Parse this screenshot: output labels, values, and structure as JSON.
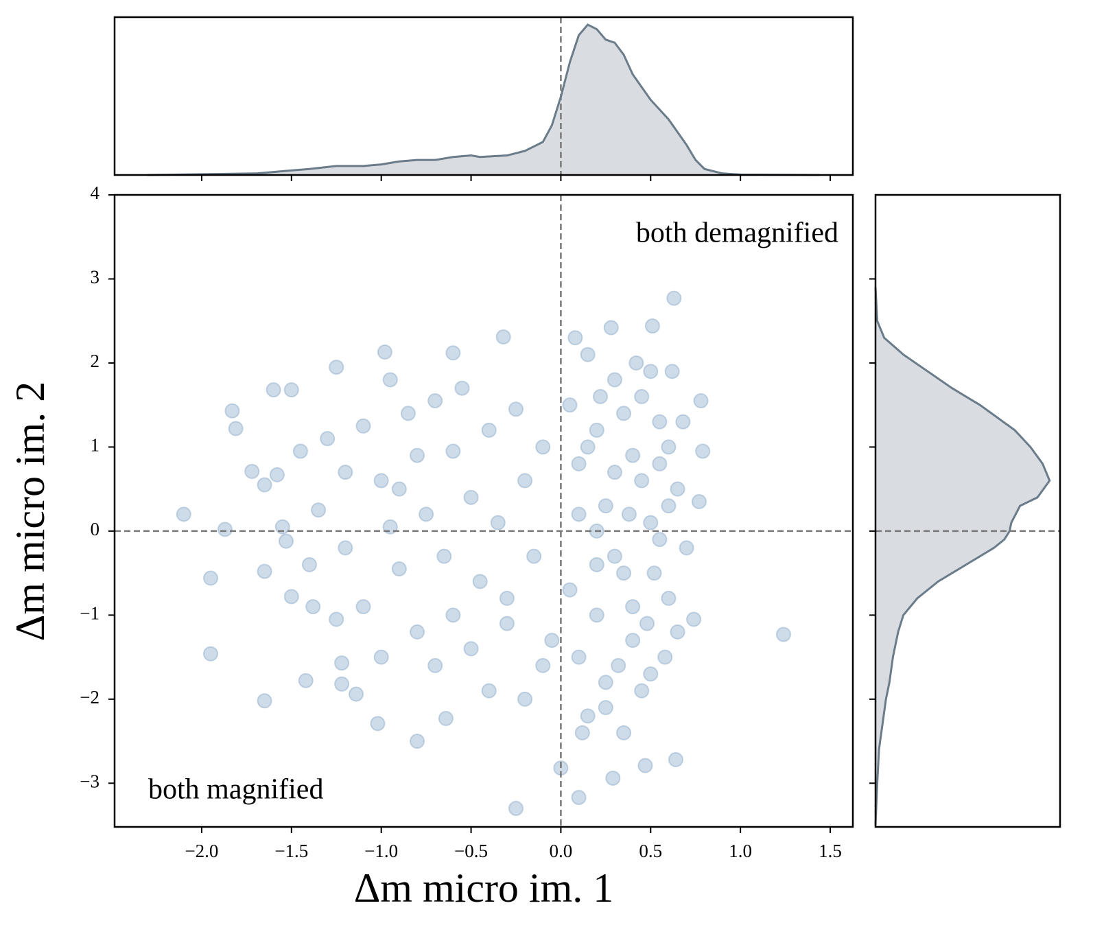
{
  "chart_data": [
    {
      "type": "scatter",
      "x_label": "Δm micro im. 1",
      "y_label": "Δm micro im. 2",
      "annotations": [
        "both demagnified",
        "both magnified"
      ],
      "xlim": [
        -2.485,
        1.626
      ],
      "ylim": [
        -3.52,
        4
      ],
      "xticks": [
        {
          "value": -2.0,
          "label": "−2.0"
        },
        {
          "value": -1.5,
          "label": "−1.5"
        },
        {
          "value": -1.0,
          "label": "−1.0"
        },
        {
          "value": -0.5,
          "label": "−0.5"
        },
        {
          "value": 0.0,
          "label": "0.0"
        },
        {
          "value": 0.5,
          "label": "0.5"
        },
        {
          "value": 1.0,
          "label": "1.0"
        },
        {
          "value": 1.5,
          "label": "1.5"
        }
      ],
      "yticks": [
        {
          "value": -3,
          "label": "−3"
        },
        {
          "value": -2,
          "label": "−2"
        },
        {
          "value": -1,
          "label": "−1"
        },
        0,
        1,
        2,
        3,
        4
      ],
      "vline": 0,
      "hline": 0,
      "series": [
        {
          "color": "#9db8d2",
          "x": [
            -2.1,
            -1.87,
            -1.95,
            -1.95,
            -1.65,
            -1.83,
            -1.81,
            -1.72,
            -1.6,
            -1.5,
            -1.65,
            -1.65,
            -1.58,
            -1.55,
            -1.53,
            -1.5,
            -1.42,
            -1.38,
            1.24,
            0.63,
            0.51,
            0.28,
            -0.32,
            -0.25,
            0.1,
            0.29,
            0.0,
            0.47,
            0.64,
            -0.8,
            -1.02,
            -0.64,
            0.79,
            0.77,
            0.78,
            0.74,
            -1.14,
            -1.22,
            -1.22,
            -1.25,
            -0.98,
            -0.6,
            -1.3,
            -1.2,
            -1.1,
            -1.0,
            -0.95,
            -0.9,
            -0.85,
            -0.8,
            -0.75,
            -0.7,
            -0.65,
            -0.6,
            -0.55,
            -0.5,
            -0.45,
            -0.4,
            -0.35,
            -0.3,
            -0.25,
            -0.2,
            -0.15,
            -0.1,
            -0.05,
            -1.2,
            -1.1,
            -1.0,
            -0.9,
            -0.8,
            -0.7,
            -0.6,
            -0.5,
            -0.4,
            -0.3,
            -0.2,
            -0.1,
            -1.35,
            -1.4,
            -1.45,
            -1.25,
            -0.95,
            0.05,
            0.1,
            0.15,
            0.2,
            0.25,
            0.3,
            0.35,
            0.4,
            0.45,
            0.5,
            0.55,
            0.6,
            0.65,
            0.7,
            0.05,
            0.1,
            0.15,
            0.2,
            0.25,
            0.3,
            0.35,
            0.4,
            0.45,
            0.5,
            0.55,
            0.6,
            0.65,
            0.1,
            0.2,
            0.3,
            0.4,
            0.5,
            0.15,
            0.25,
            0.35,
            0.45,
            0.55,
            0.62,
            0.08,
            0.2,
            0.32,
            0.42,
            0.52,
            0.6,
            0.68,
            0.12,
            0.22,
            0.38,
            0.48,
            0.58
          ],
          "values": [
            0.2,
            0.02,
            -0.56,
            -1.46,
            -2.02,
            1.43,
            1.22,
            0.71,
            1.68,
            1.68,
            0.55,
            -0.48,
            0.67,
            0.05,
            -0.12,
            -0.78,
            -1.78,
            -0.9,
            -1.23,
            2.77,
            2.44,
            2.42,
            2.31,
            -3.3,
            -3.17,
            -2.94,
            -2.82,
            -2.79,
            -2.72,
            -2.5,
            -2.29,
            -2.23,
            0.95,
            0.35,
            1.55,
            -1.05,
            -1.94,
            -1.82,
            -1.57,
            1.95,
            2.13,
            2.12,
            1.1,
            0.7,
            1.25,
            0.6,
            1.8,
            0.5,
            1.4,
            0.9,
            0.2,
            1.55,
            -0.3,
            0.95,
            1.7,
            0.4,
            -0.6,
            1.2,
            0.1,
            -0.8,
            1.45,
            0.6,
            -0.3,
            1.0,
            -1.3,
            -0.2,
            -0.9,
            -1.5,
            -0.45,
            -1.2,
            -1.6,
            -1.0,
            -1.4,
            -1.9,
            -1.1,
            -2.0,
            -1.6,
            0.25,
            -0.4,
            0.95,
            -1.05,
            0.05,
            1.5,
            0.8,
            2.1,
            1.2,
            0.3,
            1.8,
            -0.5,
            0.9,
            1.6,
            0.1,
            1.3,
            -0.8,
            0.5,
            -0.2,
            -0.7,
            -1.5,
            -2.2,
            -1.0,
            -1.8,
            -0.3,
            -2.4,
            -1.3,
            0.6,
            -1.7,
            -0.1,
            1.0,
            -1.2,
            0.2,
            -0.4,
            0.7,
            -0.9,
            1.9,
            1.0,
            -2.1,
            1.4,
            -1.9,
            0.8,
            1.9,
            2.3,
            0.0,
            -1.6,
            2.0,
            -0.5,
            0.3,
            1.3,
            -2.4,
            1.6,
            0.2,
            -1.1,
            -1.5
          ]
        }
      ]
    },
    {
      "type": "kde",
      "orientation": "vertical",
      "color": "#6a7b8a",
      "fill": "#d9dde2",
      "xlim": [
        -2.485,
        1.626
      ],
      "ylim": [
        0,
        1.05
      ],
      "x": [
        -2.3,
        -2.0,
        -1.7,
        -1.5,
        -1.4,
        -1.25,
        -1.1,
        -1.0,
        -0.9,
        -0.8,
        -0.7,
        -0.6,
        -0.5,
        -0.45,
        -0.3,
        -0.2,
        -0.1,
        -0.05,
        0.0,
        0.05,
        0.1,
        0.15,
        0.2,
        0.25,
        0.3,
        0.35,
        0.4,
        0.5,
        0.6,
        0.7,
        0.75,
        0.8,
        0.9,
        1.0,
        1.44
      ],
      "values": [
        0,
        0.005,
        0.01,
        0.03,
        0.04,
        0.06,
        0.06,
        0.07,
        0.09,
        0.1,
        0.1,
        0.12,
        0.13,
        0.12,
        0.13,
        0.16,
        0.22,
        0.33,
        0.52,
        0.75,
        0.93,
        1.0,
        0.97,
        0.9,
        0.88,
        0.8,
        0.67,
        0.5,
        0.37,
        0.2,
        0.1,
        0.04,
        0.01,
        0.003,
        0
      ]
    },
    {
      "type": "kde",
      "orientation": "horizontal",
      "color": "#6a7b8a",
      "fill": "#d9dde2",
      "xlim": [
        0,
        1.06
      ],
      "ylim": [
        -3.52,
        4
      ],
      "yticks": [
        -3,
        -2,
        -1,
        0,
        1,
        2,
        3
      ],
      "y": [
        2.9,
        2.5,
        2.3,
        2.1,
        1.9,
        1.7,
        1.5,
        1.2,
        1.0,
        0.8,
        0.6,
        0.4,
        0.3,
        0.1,
        0,
        -0.1,
        -0.2,
        -0.4,
        -0.6,
        -0.8,
        -1.0,
        -1.2,
        -1.5,
        -1.8,
        -2.0,
        -2.3,
        -2.6,
        -3.0,
        -3.5
      ],
      "values": [
        0,
        0.01,
        0.05,
        0.16,
        0.3,
        0.44,
        0.6,
        0.8,
        0.89,
        0.96,
        1.0,
        0.93,
        0.83,
        0.78,
        0.77,
        0.74,
        0.68,
        0.52,
        0.36,
        0.24,
        0.16,
        0.13,
        0.1,
        0.08,
        0.06,
        0.04,
        0.02,
        0.01,
        0
      ]
    }
  ]
}
